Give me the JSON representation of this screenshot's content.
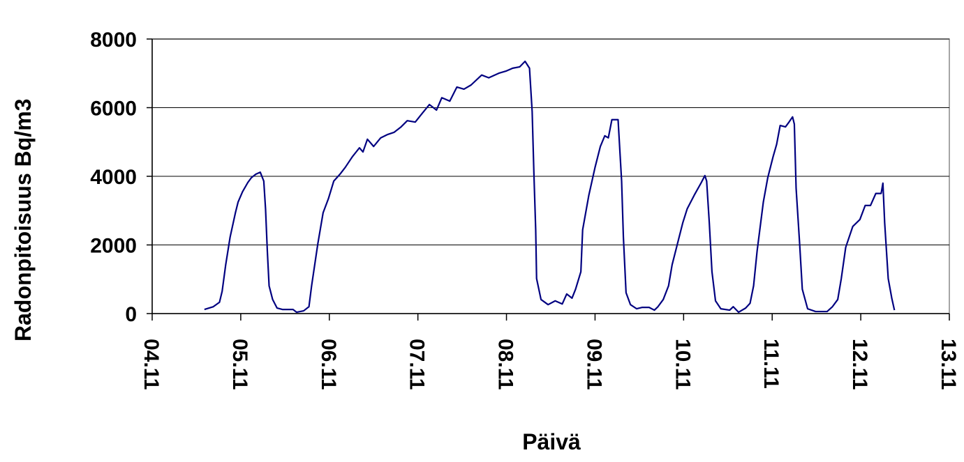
{
  "chart_data": {
    "type": "line",
    "xlabel": "Päivä",
    "ylabel": "Radonpitoisuus Bq/m3",
    "x": [
      4.59,
      4.69,
      4.76,
      4.79,
      4.83,
      4.88,
      4.94,
      4.97,
      5.02,
      5.08,
      5.12,
      5.17,
      5.22,
      5.26,
      5.28,
      5.3,
      5.32,
      5.36,
      5.41,
      5.47,
      5.59,
      5.63,
      5.71,
      5.77,
      5.8,
      5.87,
      5.93,
      5.99,
      6.05,
      6.12,
      6.18,
      6.26,
      6.34,
      6.38,
      6.43,
      6.5,
      6.58,
      6.66,
      6.73,
      6.81,
      6.88,
      6.97,
      7.05,
      7.13,
      7.21,
      7.27,
      7.36,
      7.44,
      7.52,
      7.6,
      7.72,
      7.8,
      7.92,
      8.0,
      8.07,
      8.15,
      8.21,
      8.26,
      8.29,
      8.31,
      8.33,
      8.34,
      8.39,
      8.47,
      8.55,
      8.63,
      8.68,
      8.74,
      8.78,
      8.84,
      8.86,
      8.93,
      9.0,
      9.06,
      9.11,
      9.15,
      9.19,
      9.26,
      9.3,
      9.32,
      9.35,
      9.4,
      9.47,
      9.53,
      9.61,
      9.67,
      9.71,
      9.77,
      9.83,
      9.87,
      9.93,
      9.99,
      10.04,
      10.12,
      10.2,
      10.24,
      10.26,
      10.29,
      10.32,
      10.36,
      10.42,
      10.52,
      10.56,
      10.62,
      10.7,
      10.75,
      10.79,
      10.83,
      10.9,
      10.95,
      11.01,
      11.05,
      11.09,
      11.15,
      11.19,
      11.23,
      11.25,
      11.27,
      11.31,
      11.34,
      11.4,
      11.49,
      11.62,
      11.68,
      11.74,
      11.78,
      11.83,
      11.91,
      11.99,
      12.05,
      12.11,
      12.17,
      12.23,
      12.25,
      12.27,
      12.31,
      12.35,
      12.38
    ],
    "series": [
      {
        "name": "Radonpitoisuus",
        "color": "#000080",
        "values": [
          120,
          200,
          330,
          650,
          1420,
          2230,
          2940,
          3250,
          3550,
          3820,
          3960,
          4060,
          4120,
          3860,
          3050,
          1830,
          810,
          410,
          160,
          120,
          120,
          40,
          80,
          200,
          810,
          2030,
          2940,
          3350,
          3860,
          4060,
          4260,
          4570,
          4830,
          4710,
          5080,
          4870,
          5120,
          5220,
          5280,
          5440,
          5620,
          5580,
          5840,
          6090,
          5930,
          6290,
          6190,
          6600,
          6540,
          6660,
          6950,
          6870,
          7010,
          7070,
          7150,
          7190,
          7350,
          7150,
          5890,
          4060,
          2440,
          1020,
          410,
          260,
          370,
          280,
          570,
          450,
          710,
          1220,
          2440,
          3450,
          4260,
          4870,
          5180,
          5120,
          5650,
          5650,
          3860,
          2230,
          610,
          260,
          140,
          180,
          180,
          100,
          200,
          410,
          810,
          1420,
          2030,
          2640,
          3050,
          3450,
          3820,
          4020,
          3860,
          2640,
          1220,
          370,
          140,
          100,
          200,
          40,
          160,
          300,
          810,
          1830,
          3250,
          3960,
          4570,
          4930,
          5480,
          5440,
          5580,
          5730,
          5520,
          3650,
          2030,
          710,
          140,
          60,
          60,
          200,
          410,
          1020,
          1930,
          2540,
          2740,
          3150,
          3150,
          3500,
          3500,
          3800,
          2640,
          1020,
          450,
          100
        ]
      }
    ],
    "xlim": [
      4,
      13
    ],
    "xticks": [
      {
        "value": 4,
        "label": "04.11"
      },
      {
        "value": 5,
        "label": "05.11"
      },
      {
        "value": 6,
        "label": "06.11"
      },
      {
        "value": 7,
        "label": "07.11"
      },
      {
        "value": 8,
        "label": "08.11"
      },
      {
        "value": 9,
        "label": "09.11"
      },
      {
        "value": 10,
        "label": "10.11"
      },
      {
        "value": 11,
        "label": "11.11"
      },
      {
        "value": 12,
        "label": "12.11"
      },
      {
        "value": 13,
        "label": "13.11"
      }
    ],
    "ylim": [
      0,
      8000
    ],
    "yticks": [
      0,
      2000,
      4000,
      6000,
      8000
    ],
    "grid": true
  }
}
